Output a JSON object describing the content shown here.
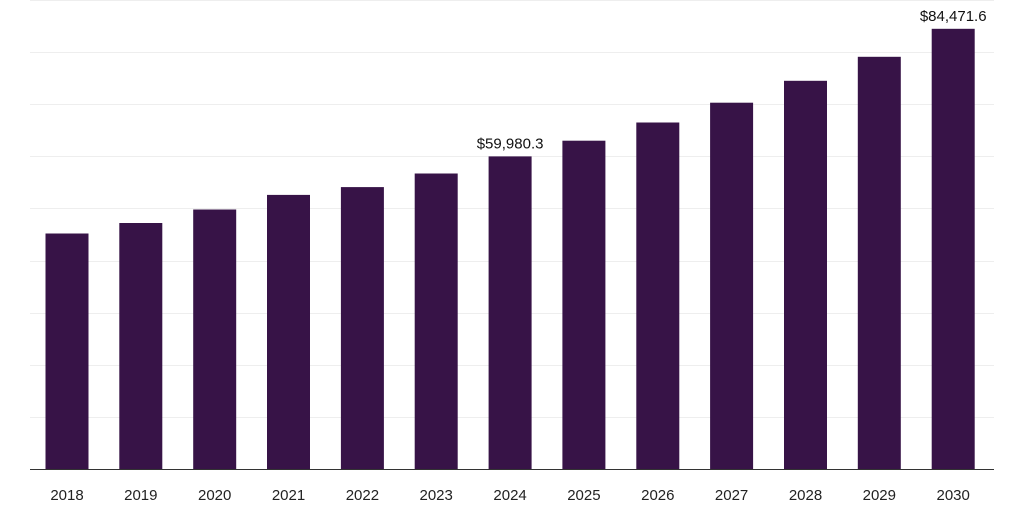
{
  "chart_data": {
    "type": "bar",
    "categories": [
      "2018",
      "2019",
      "2020",
      "2021",
      "2022",
      "2023",
      "2024",
      "2025",
      "2026",
      "2027",
      "2028",
      "2029",
      "2030"
    ],
    "values": [
      45200,
      47200,
      49800,
      52600,
      54100,
      56700,
      59980.3,
      63000,
      66500,
      70300,
      74500,
      79100,
      84471.6
    ],
    "data_labels": [
      {
        "category": "2024",
        "text": "$59,980.3"
      },
      {
        "category": "2030",
        "text": "$84,471.6"
      }
    ],
    "title": "",
    "xlabel": "",
    "ylabel": "",
    "ylim": [
      0,
      90000
    ],
    "grid": true,
    "legend": "none",
    "bar_color": "#371347",
    "grid_color": "#eeeeee",
    "axis_color": "#333333",
    "text_color": "#222222"
  }
}
